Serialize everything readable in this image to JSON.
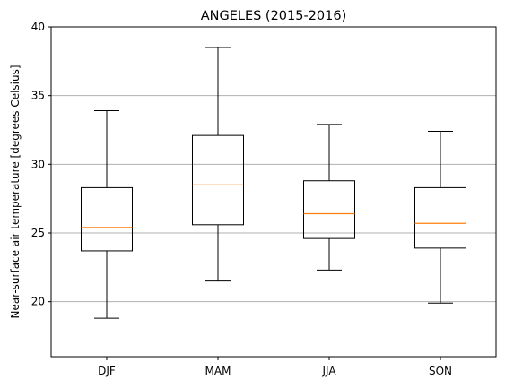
{
  "chart_data": {
    "type": "boxplot",
    "title": "ANGELES (2015-2016)",
    "xlabel": "",
    "ylabel": "Near-surface air temperature [degrees Celsius]",
    "ylim": [
      16,
      40
    ],
    "yticks": [
      20,
      25,
      30,
      35,
      40
    ],
    "grid": "y-major",
    "categories": [
      "DJF",
      "MAM",
      "JJA",
      "SON"
    ],
    "boxes": [
      {
        "category": "DJF",
        "whisker_low": 18.8,
        "q1": 23.7,
        "median": 25.4,
        "q3": 28.3,
        "whisker_high": 33.9
      },
      {
        "category": "MAM",
        "whisker_low": 21.5,
        "q1": 25.6,
        "median": 28.5,
        "q3": 32.1,
        "whisker_high": 38.5
      },
      {
        "category": "JJA",
        "whisker_low": 22.3,
        "q1": 24.6,
        "median": 26.4,
        "q3": 28.8,
        "whisker_high": 32.9
      },
      {
        "category": "SON",
        "whisker_low": 19.9,
        "q1": 23.9,
        "median": 25.7,
        "q3": 28.3,
        "whisker_high": 32.4
      }
    ],
    "colors": {
      "box": "#000000",
      "median": "#ff7f0e",
      "grid": "#b0b0b0"
    }
  }
}
